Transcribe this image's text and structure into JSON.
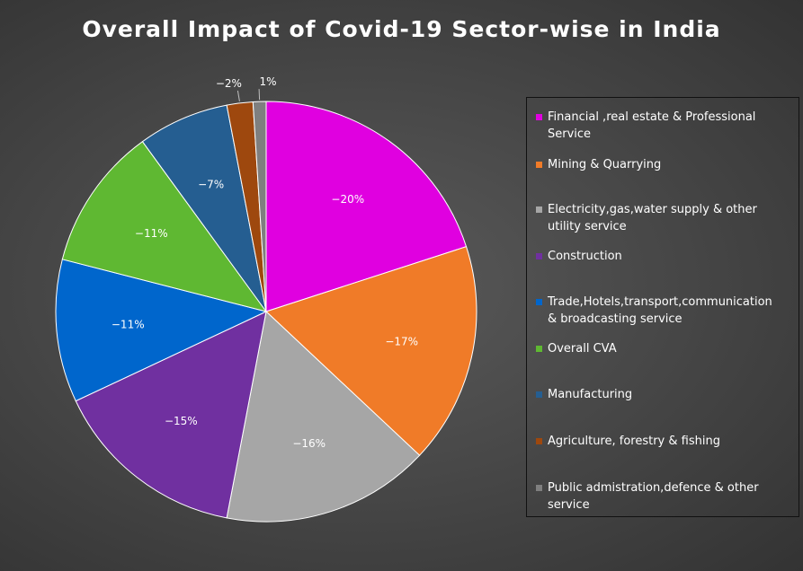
{
  "chart_data": {
    "type": "pie",
    "title": "Overall Impact of Covid-19 Sector-wise in India",
    "slices": [
      {
        "name": "Financial ,real estate & Professional Service",
        "legend_text": "Financial ,real estate & Professional\nService",
        "value": 20,
        "label": "−20%",
        "color": "#e000e0"
      },
      {
        "name": "Mining & Quarrying",
        "legend_text": "Mining & Quarrying",
        "value": 17,
        "label": "−17%",
        "color": "#f07b28"
      },
      {
        "name": "Electricity,gas,water supply & other utility service",
        "legend_text": "Electricity,gas,water supply & other\nutility service",
        "value": 16,
        "label": "−16%",
        "color": "#a6a6a6"
      },
      {
        "name": "Construction",
        "legend_text": "Construction",
        "value": 15,
        "label": "−15%",
        "color": "#7030a0"
      },
      {
        "name": "Trade,Hotels,transport,communication & broadcasting service",
        "legend_text": "Trade,Hotels,transport,communication\n& broadcasting service",
        "value": 11,
        "label": "−11%",
        "color": "#0066cc"
      },
      {
        "name": "Overall CVA",
        "legend_text": "Overall CVA",
        "value": 11,
        "label": "−11%",
        "color": "#5fb832"
      },
      {
        "name": "Manufacturing",
        "legend_text": "Manufacturing",
        "value": 7,
        "label": "−7%",
        "color": "#255e91"
      },
      {
        "name": "Agriculture, forestry & fishing",
        "legend_text": "Agriculture, forestry & fishing",
        "value": 2,
        "label": "−2%",
        "color": "#9e480e"
      },
      {
        "name": "Public admistration,defence & other service",
        "legend_text": "Public admistration,defence & other\nservice",
        "value": 1,
        "label": "1%",
        "color": "#7f7f7f"
      }
    ],
    "legend_placement": "right"
  }
}
